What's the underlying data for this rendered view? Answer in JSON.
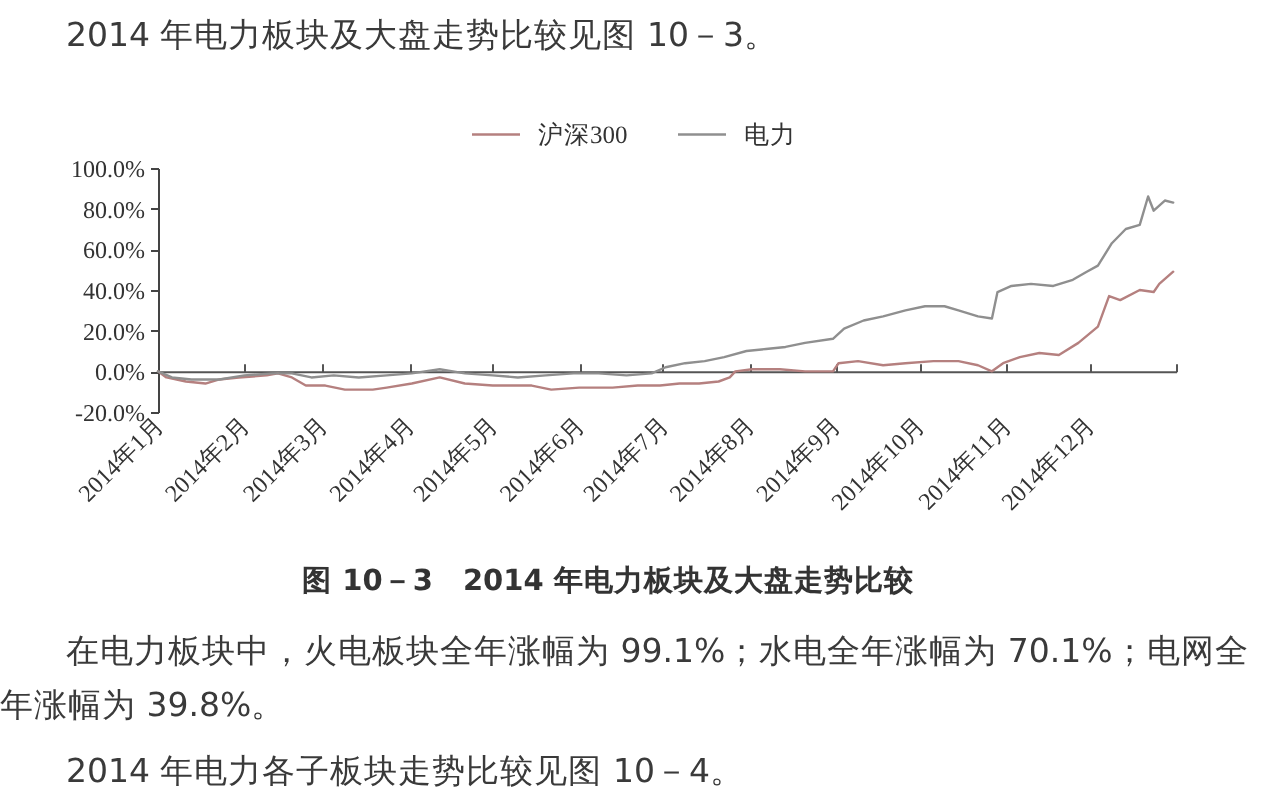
{
  "chart_data": {
    "type": "line",
    "title": "图 10－3　2014 年电力板块及大盘走势比较",
    "annotations": [
      "2014 年电力板块及大盘走势比较见图 10－3。",
      "在电力板块中，火电板块全年涨幅为 99.1%；水电全年涨幅为 70.1%；电网全年涨幅为 39.8%。",
      "2014 年电力各子板块走势比较见图 10－4。"
    ],
    "xlim": [
      "2014-01-01",
      "2015-01-01"
    ],
    "xticks": [
      {
        "value": "2014-01-01",
        "label": "2014年1月"
      },
      {
        "value": "2014-02-01",
        "label": "2014年2月"
      },
      {
        "value": "2014-03-01",
        "label": "2014年3月"
      },
      {
        "value": "2014-04-01",
        "label": "2014年4月"
      },
      {
        "value": "2014-05-01",
        "label": "2014年5月"
      },
      {
        "value": "2014-06-01",
        "label": "2014年6月"
      },
      {
        "value": "2014-07-01",
        "label": "2014年7月"
      },
      {
        "value": "2014-08-01",
        "label": "2014年8月"
      },
      {
        "value": "2014-09-01",
        "label": "2014年9月"
      },
      {
        "value": "2014-10-01",
        "label": "2014年10月"
      },
      {
        "value": "2014-11-01",
        "label": "2014年11月"
      },
      {
        "value": "2014-12-01",
        "label": "2014年12月"
      },
      {
        "value": "2015-01-01",
        "label": null
      }
    ],
    "ylim": [
      -20,
      100
    ],
    "yticks": [
      {
        "value": -20,
        "label": "-20.0%"
      },
      {
        "value": 0,
        "label": "0.0%"
      },
      {
        "value": 20,
        "label": "20.0%"
      },
      {
        "value": 40,
        "label": "40.0%"
      },
      {
        "value": 60,
        "label": "60.0%"
      },
      {
        "value": 80,
        "label": "80.0%"
      },
      {
        "value": 100,
        "label": "100.0%"
      }
    ],
    "legend": "top",
    "marker": "none",
    "line_style": "solid",
    "series": [
      {
        "name": "沪深300",
        "color": "#b5807f",
        "x": [
          "2014-01-01",
          "2014-01-04",
          "2014-01-11",
          "2014-01-18",
          "2014-01-23",
          "2014-01-30",
          "2014-02-09",
          "2014-02-13",
          "2014-02-18",
          "2014-02-23",
          "2014-03-02",
          "2014-03-09",
          "2014-03-19",
          "2014-03-24",
          "2014-04-02",
          "2014-04-12",
          "2014-04-21",
          "2014-05-01",
          "2014-05-15",
          "2014-05-22",
          "2014-06-01",
          "2014-06-13",
          "2014-06-22",
          "2014-06-30",
          "2014-07-07",
          "2014-07-14",
          "2014-07-21",
          "2014-07-25",
          "2014-07-27",
          "2014-08-02",
          "2014-08-12",
          "2014-08-21",
          "2014-08-31",
          "2014-09-02",
          "2014-09-09",
          "2014-09-18",
          "2014-09-26",
          "2014-10-06",
          "2014-10-15",
          "2014-10-22",
          "2014-10-27",
          "2014-10-31",
          "2014-11-06",
          "2014-11-13",
          "2014-11-20",
          "2014-11-27",
          "2014-12-04",
          "2014-12-08",
          "2014-12-12",
          "2014-12-19",
          "2014-12-24",
          "2014-12-26",
          "2014-12-31"
        ],
        "values": [
          0,
          -3,
          -5,
          -6,
          -4,
          -3,
          -2,
          -1,
          -3,
          -7,
          -7,
          -9,
          -9,
          -8,
          -6,
          -3,
          -6,
          -7,
          -7,
          -9,
          -8,
          -8,
          -7,
          -7,
          -6,
          -6,
          -5,
          -3,
          0,
          1,
          1,
          0,
          0,
          4,
          5,
          3,
          4,
          5,
          5,
          3,
          0,
          4,
          7,
          9,
          8,
          14,
          22,
          37,
          35,
          40,
          39,
          43,
          49
        ]
      },
      {
        "name": "电力",
        "color": "#8f8f8f",
        "x": [
          "2014-01-01",
          "2014-01-06",
          "2014-01-13",
          "2014-01-23",
          "2014-02-01",
          "2014-02-11",
          "2014-02-18",
          "2014-02-25",
          "2014-03-05",
          "2014-03-14",
          "2014-03-24",
          "2014-04-02",
          "2014-04-12",
          "2014-04-21",
          "2014-05-01",
          "2014-05-10",
          "2014-05-20",
          "2014-05-30",
          "2014-06-08",
          "2014-06-18",
          "2014-06-27",
          "2014-07-02",
          "2014-07-09",
          "2014-07-16",
          "2014-07-23",
          "2014-07-31",
          "2014-08-07",
          "2014-08-14",
          "2014-08-21",
          "2014-08-31",
          "2014-09-04",
          "2014-09-11",
          "2014-09-18",
          "2014-09-26",
          "2014-10-03",
          "2014-10-10",
          "2014-10-15",
          "2014-10-22",
          "2014-10-27",
          "2014-10-29",
          "2014-11-03",
          "2014-11-10",
          "2014-11-18",
          "2014-11-25",
          "2014-11-30",
          "2014-12-04",
          "2014-12-09",
          "2014-12-14",
          "2014-12-19",
          "2014-12-22",
          "2014-12-24",
          "2014-12-28",
          "2014-12-31"
        ],
        "values": [
          0,
          -3,
          -4,
          -4,
          -2,
          -1,
          -1,
          -3,
          -2,
          -3,
          -2,
          -1,
          1,
          -1,
          -2,
          -3,
          -2,
          -1,
          -1,
          -2,
          -1,
          2,
          4,
          5,
          7,
          10,
          11,
          12,
          14,
          16,
          21,
          25,
          27,
          30,
          32,
          32,
          30,
          27,
          26,
          39,
          42,
          43,
          42,
          45,
          49,
          52,
          63,
          70,
          72,
          86,
          79,
          84,
          83
        ]
      }
    ]
  }
}
